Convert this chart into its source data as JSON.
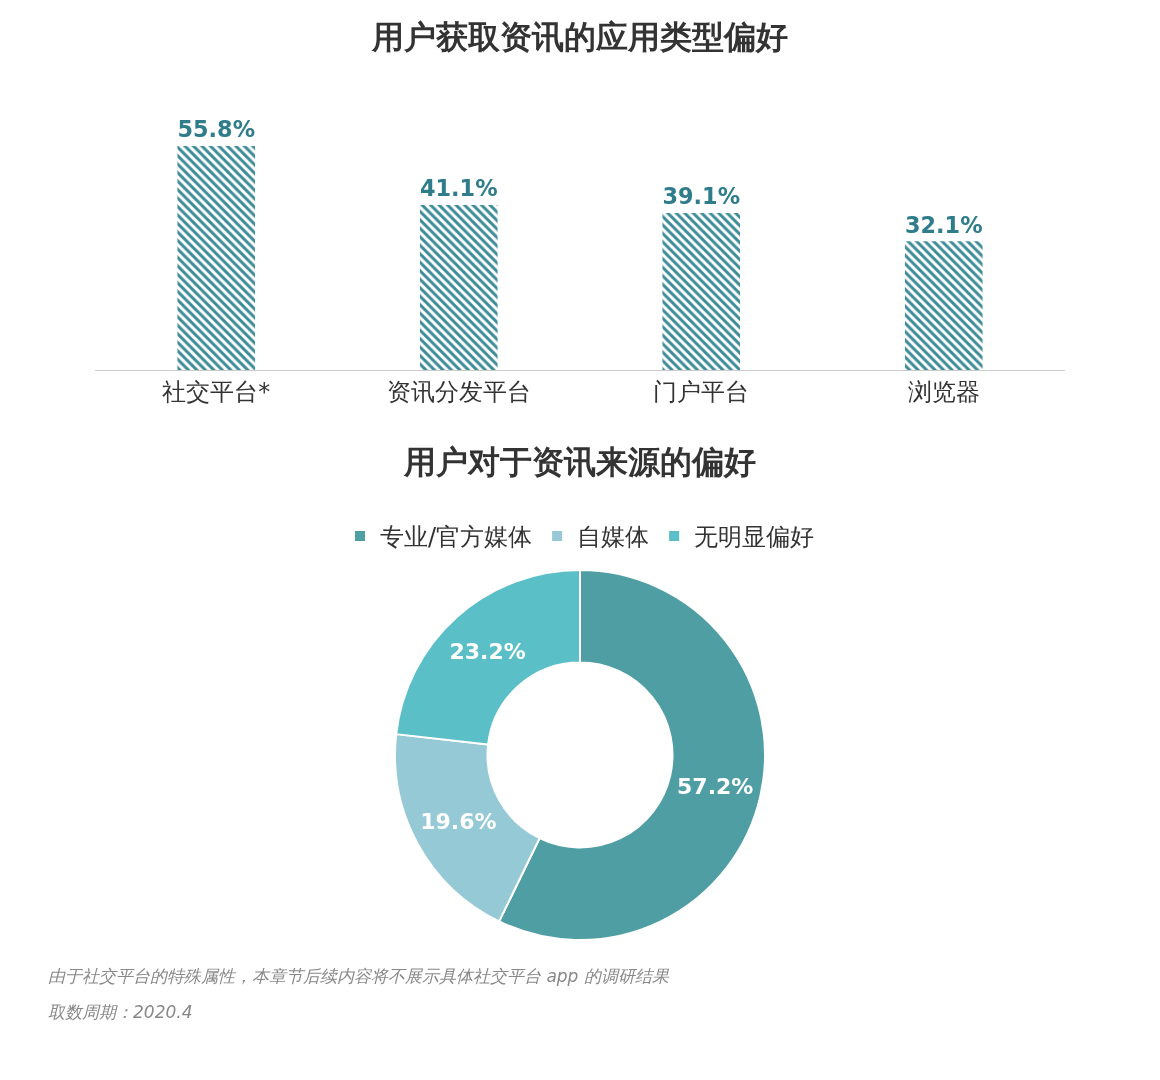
{
  "chart_data": [
    {
      "type": "bar",
      "title": "用户获取资讯的应用类型偏好",
      "categories": [
        "社交平台*",
        "资讯分发平台",
        "门户平台",
        "浏览器"
      ],
      "values": [
        55.8,
        41.1,
        39.1,
        32.1
      ],
      "value_labels": [
        "55.8%",
        "41.1%",
        "39.1%",
        "32.1%"
      ],
      "color": "#3d8c98",
      "legend": false
    },
    {
      "type": "donut",
      "title": "用户对于资讯来源的偏好",
      "categories": [
        "专业/官方媒体",
        "自媒体",
        "无明显偏好"
      ],
      "values": [
        57.2,
        19.6,
        23.2
      ],
      "colors": [
        "#4f9ea3",
        "#96c9d6",
        "#5bbfc8"
      ],
      "value_labels": [
        "57.2%",
        "19.6%",
        "23.2%"
      ],
      "legend": "top",
      "annotations": [
        "由于社交平台的特殊属性，本章节后续内容将不展示具体社交平台 app 的调研结果",
        "取数周期：2020.4"
      ]
    }
  ]
}
